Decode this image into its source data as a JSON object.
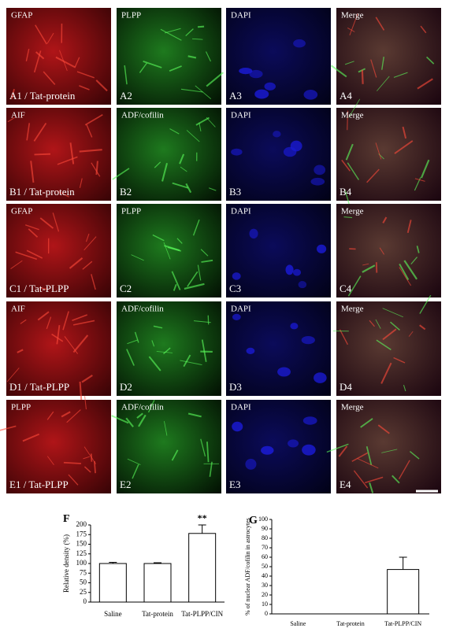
{
  "panels": {
    "rows": [
      [
        {
          "top": "GFAP",
          "bottom": "A1 / Tat-protein"
        },
        {
          "top": "PLPP",
          "bottom": "A2"
        },
        {
          "top": "DAPI",
          "bottom": "A3"
        },
        {
          "top": "Merge",
          "bottom": "A4"
        }
      ],
      [
        {
          "top": "AIF",
          "bottom": "B1 / Tat-protein"
        },
        {
          "top": "ADF/cofilin",
          "bottom": "B2"
        },
        {
          "top": "DAPI",
          "bottom": "B3"
        },
        {
          "top": "Merge",
          "bottom": "B4"
        }
      ],
      [
        {
          "top": "GFAP",
          "bottom": "C1 / Tat-PLPP"
        },
        {
          "top": "PLPP",
          "bottom": "C2"
        },
        {
          "top": "DAPI",
          "bottom": "C3"
        },
        {
          "top": "Merge",
          "bottom": "C4"
        }
      ],
      [
        {
          "top": "AIF",
          "bottom": "D1 / Tat-PLPP"
        },
        {
          "top": "ADF/cofilin",
          "bottom": "D2"
        },
        {
          "top": "DAPI",
          "bottom": "D3"
        },
        {
          "top": "Merge",
          "bottom": "D4"
        }
      ],
      [
        {
          "top": "PLPP",
          "bottom": "E1 / Tat-PLPP"
        },
        {
          "top": "ADF/cofilin",
          "bottom": "E2"
        },
        {
          "top": "DAPI",
          "bottom": "E3"
        },
        {
          "top": "Merge",
          "bottom": "E4"
        }
      ]
    ]
  },
  "chart_data": [
    {
      "type": "bar",
      "panel_label": "F",
      "ylabel": "Relative density (%)",
      "categories": [
        "Saline",
        "Tat-protein",
        "Tat-PLPP/CIN"
      ],
      "values": [
        100,
        100,
        178
      ],
      "errors": [
        3,
        2,
        22
      ],
      "annotations": [
        {
          "text": "**",
          "category": "Tat-PLPP/CIN"
        }
      ],
      "color": "#ffffff",
      "ylim": [
        0,
        200
      ],
      "yticks": [
        0,
        25,
        50,
        75,
        100,
        125,
        150,
        175,
        200
      ]
    },
    {
      "type": "bar",
      "panel_label": "G",
      "ylabel": "% of nuclear ADF/cofilin in astrocytes",
      "categories": [
        "Saline",
        "Tat-protein",
        "Tat-PLPP/CIN"
      ],
      "values": [
        0,
        0,
        47
      ],
      "errors": [
        0,
        0,
        13
      ],
      "color": "#ffffff",
      "ylim": [
        0,
        100
      ],
      "yticks": [
        0,
        10,
        20,
        30,
        40,
        50,
        60,
        70,
        80,
        90,
        100
      ]
    }
  ]
}
